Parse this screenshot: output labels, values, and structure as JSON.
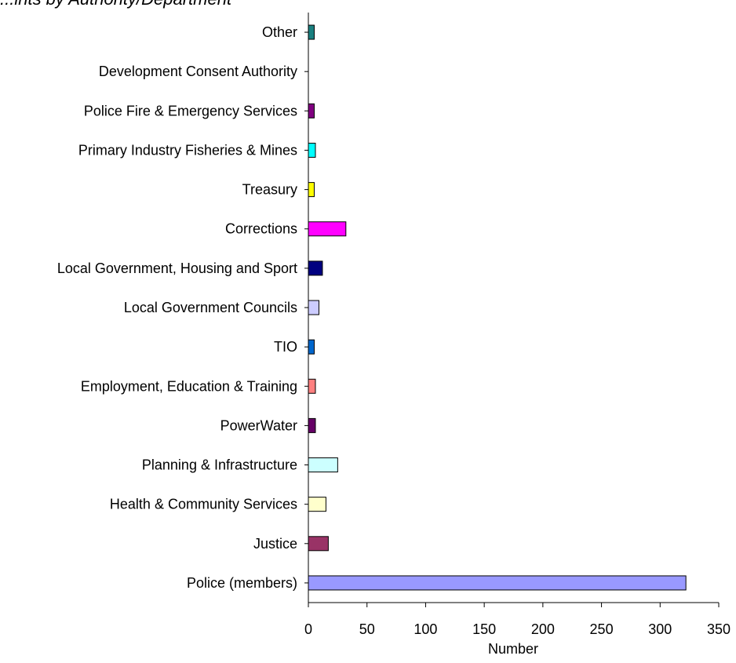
{
  "chart_data": {
    "type": "bar",
    "orientation": "horizontal",
    "title": "...ints by Authority/Department",
    "xlabel": "Number",
    "ylabel": "",
    "xlim": [
      0,
      350
    ],
    "x_ticks": [
      0,
      50,
      100,
      150,
      200,
      250,
      300,
      350
    ],
    "grid": false,
    "legend": "none",
    "categories": [
      "Other",
      "Development Consent Authority",
      "Police Fire & Emergency Services",
      "Primary Industry Fisheries & Mines",
      "Treasury",
      "Corrections",
      "Local Government, Housing and Sport",
      "Local Government Councils",
      "TIO",
      "Employment, Education & Training",
      "PowerWater",
      "Planning & Infrastructure",
      "Health & Community Services",
      "Justice",
      "Police (members)"
    ],
    "values": [
      5,
      0,
      5,
      6,
      5,
      32,
      12,
      9,
      5,
      6,
      6,
      25,
      15,
      17,
      322
    ],
    "colors": [
      "#1a8080",
      "#ffffff",
      "#800080",
      "#00ffff",
      "#ffff00",
      "#ff00ff",
      "#000080",
      "#ccccff",
      "#0066cc",
      "#ff8080",
      "#660066",
      "#ccffff",
      "#ffffcc",
      "#993366",
      "#9999ff"
    ]
  }
}
